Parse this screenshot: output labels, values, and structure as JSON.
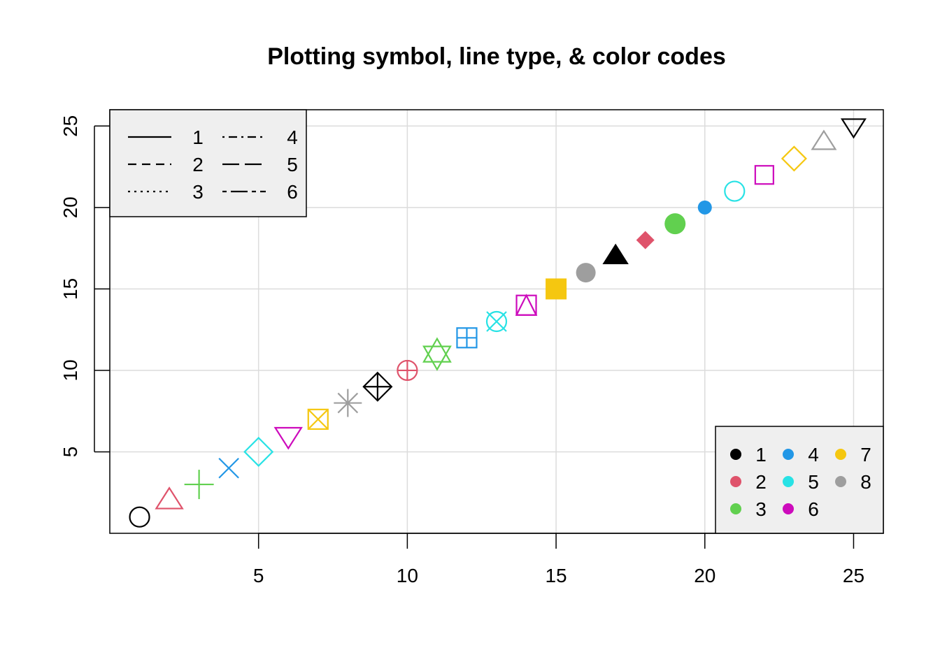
{
  "chart_data": {
    "type": "scatter",
    "title": "Plotting symbol, line type, & color codes",
    "xlabel": "",
    "ylabel": "",
    "xlim": [
      0,
      26
    ],
    "ylim": [
      0,
      26
    ],
    "x_ticks": [
      "5",
      "10",
      "15",
      "20",
      "25"
    ],
    "y_ticks": [
      "5",
      "10",
      "15",
      "20",
      "25"
    ],
    "grid": true,
    "palette": [
      "#000000",
      "#DF536B",
      "#61D04F",
      "#2297E6",
      "#28E2E5",
      "#CD0BBC",
      "#F5C710",
      "#9E9E9E"
    ],
    "points": [
      {
        "x": 1,
        "y": 1,
        "pch": 1,
        "color": "#000000"
      },
      {
        "x": 2,
        "y": 2,
        "pch": 2,
        "color": "#DF536B"
      },
      {
        "x": 3,
        "y": 3,
        "pch": 3,
        "color": "#61D04F"
      },
      {
        "x": 4,
        "y": 4,
        "pch": 4,
        "color": "#2297E6"
      },
      {
        "x": 5,
        "y": 5,
        "pch": 5,
        "color": "#28E2E5"
      },
      {
        "x": 6,
        "y": 6,
        "pch": 6,
        "color": "#CD0BBC"
      },
      {
        "x": 7,
        "y": 7,
        "pch": 7,
        "color": "#F5C710"
      },
      {
        "x": 8,
        "y": 8,
        "pch": 8,
        "color": "#9E9E9E"
      },
      {
        "x": 9,
        "y": 9,
        "pch": 9,
        "color": "#000000"
      },
      {
        "x": 10,
        "y": 10,
        "pch": 10,
        "color": "#DF536B"
      },
      {
        "x": 11,
        "y": 11,
        "pch": 11,
        "color": "#61D04F"
      },
      {
        "x": 12,
        "y": 12,
        "pch": 12,
        "color": "#2297E6"
      },
      {
        "x": 13,
        "y": 13,
        "pch": 13,
        "color": "#28E2E5"
      },
      {
        "x": 14,
        "y": 14,
        "pch": 14,
        "color": "#CD0BBC"
      },
      {
        "x": 15,
        "y": 15,
        "pch": 15,
        "color": "#F5C710"
      },
      {
        "x": 16,
        "y": 16,
        "pch": 16,
        "color": "#9E9E9E"
      },
      {
        "x": 17,
        "y": 17,
        "pch": 17,
        "color": "#000000"
      },
      {
        "x": 18,
        "y": 18,
        "pch": 18,
        "color": "#DF536B"
      },
      {
        "x": 19,
        "y": 19,
        "pch": 19,
        "color": "#61D04F"
      },
      {
        "x": 20,
        "y": 20,
        "pch": 20,
        "color": "#2297E6"
      },
      {
        "x": 21,
        "y": 21,
        "pch": 21,
        "color": "#28E2E5"
      },
      {
        "x": 22,
        "y": 22,
        "pch": 22,
        "color": "#CD0BBC"
      },
      {
        "x": 23,
        "y": 23,
        "pch": 23,
        "color": "#F5C710"
      },
      {
        "x": 24,
        "y": 24,
        "pch": 24,
        "color": "#9E9E9E"
      },
      {
        "x": 25,
        "y": 25,
        "pch": 25,
        "color": "#000000"
      }
    ],
    "legend_linetypes": {
      "placement": "top-left",
      "entries": [
        {
          "label": "1",
          "lty": "solid"
        },
        {
          "label": "2",
          "lty": "dashed"
        },
        {
          "label": "3",
          "lty": "dotted"
        },
        {
          "label": "4",
          "lty": "dotdash"
        },
        {
          "label": "5",
          "lty": "longdash"
        },
        {
          "label": "6",
          "lty": "twodash"
        }
      ]
    },
    "legend_colors": {
      "placement": "bottom-right",
      "entries": [
        {
          "label": "1",
          "color": "#000000"
        },
        {
          "label": "2",
          "color": "#DF536B"
        },
        {
          "label": "3",
          "color": "#61D04F"
        },
        {
          "label": "4",
          "color": "#2297E6"
        },
        {
          "label": "5",
          "color": "#28E2E5"
        },
        {
          "label": "6",
          "color": "#CD0BBC"
        },
        {
          "label": "7",
          "color": "#F5C710"
        },
        {
          "label": "8",
          "color": "#9E9E9E"
        }
      ]
    }
  }
}
